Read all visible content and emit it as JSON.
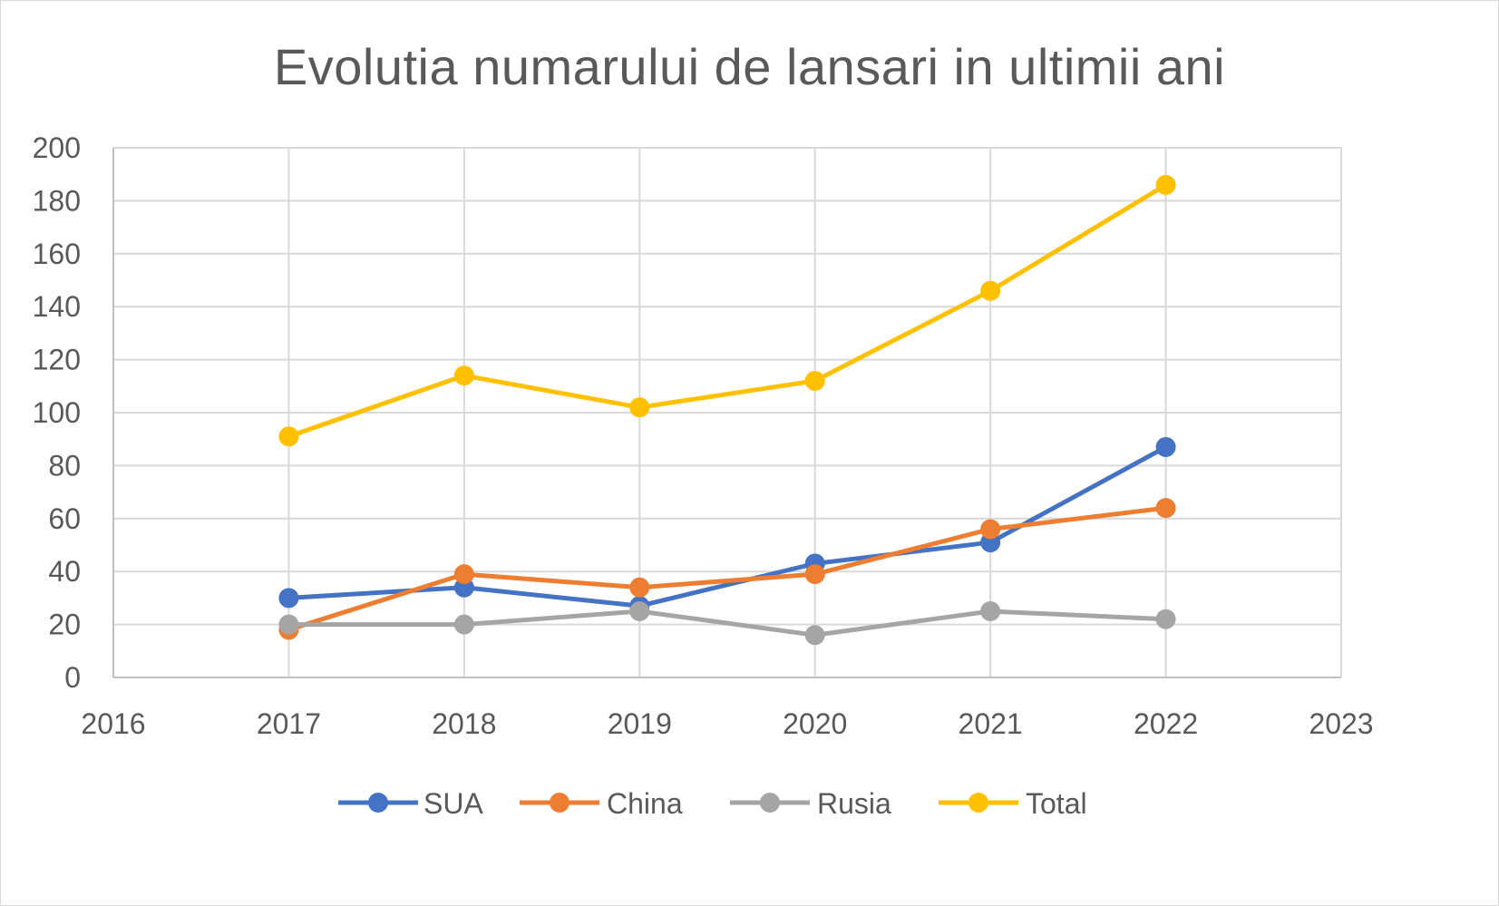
{
  "chart_data": {
    "type": "line",
    "title": "Evolutia numarului de lansari in ultimii ani",
    "xlabel": "",
    "ylabel": "",
    "xlim": [
      2016,
      2023
    ],
    "ylim": [
      0,
      200
    ],
    "x_ticks": [
      "2016",
      "2017",
      "2018",
      "2019",
      "2020",
      "2021",
      "2022",
      "2023"
    ],
    "y_ticks": [
      "0",
      "20",
      "40",
      "60",
      "80",
      "100",
      "120",
      "140",
      "160",
      "180",
      "200"
    ],
    "x": [
      2017,
      2018,
      2019,
      2020,
      2021,
      2022
    ],
    "grid": true,
    "legend_position": "bottom",
    "series": [
      {
        "name": "SUA",
        "color": "#4472c4",
        "values": [
          30,
          34,
          27,
          43,
          51,
          87
        ]
      },
      {
        "name": "China",
        "color": "#ed7d31",
        "values": [
          18,
          39,
          34,
          39,
          56,
          64
        ]
      },
      {
        "name": "Rusia",
        "color": "#a5a5a5",
        "values": [
          20,
          20,
          25,
          16,
          25,
          22
        ]
      },
      {
        "name": "Total",
        "color": "#ffc000",
        "values": [
          91,
          114,
          102,
          112,
          146,
          186
        ]
      }
    ]
  }
}
